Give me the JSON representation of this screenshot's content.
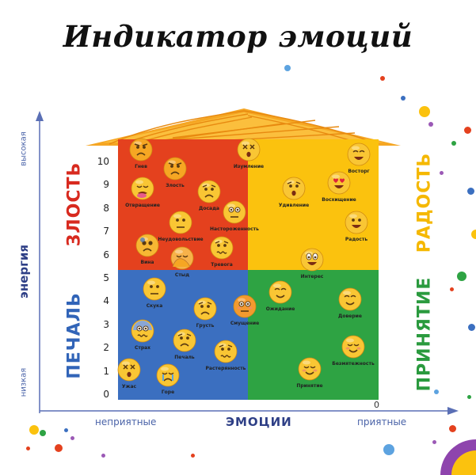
{
  "title": "Индикатор эмоций",
  "y_axis": {
    "title": "энергия",
    "high": "высокая",
    "low": "низкая",
    "ticks": [
      "0",
      "1",
      "2",
      "3",
      "4",
      "5",
      "6",
      "7",
      "8",
      "9",
      "10"
    ]
  },
  "x_axis": {
    "title": "ЭМОЦИИ",
    "left": "неприятные",
    "right": "приятные",
    "zero": "0"
  },
  "quadrants": {
    "anger": {
      "label": "ЗЛОСТЬ",
      "color": "#e4411e"
    },
    "joy": {
      "label": "РАДОСТЬ",
      "color": "#fbc20e"
    },
    "sadness": {
      "label": "ПЕЧАЛЬ",
      "color": "#3b6fc0"
    },
    "acceptance": {
      "label": "ПРИНЯТИЕ",
      "color": "#2ea343"
    }
  },
  "label_colors": {
    "anger": "#d82a1f",
    "joy": "#f5b800",
    "sadness": "#3164b8",
    "acceptance": "#2a9a3e"
  },
  "emotions": [
    {
      "label": "Гнев",
      "face": "angry"
    },
    {
      "label": "Злость",
      "face": "angry"
    },
    {
      "label": "Отвращение",
      "face": "disgust"
    },
    {
      "label": "Досада",
      "face": "sad"
    },
    {
      "label": "Изумление",
      "face": "dizzy"
    },
    {
      "label": "Неудовольствие",
      "face": "neutral"
    },
    {
      "label": "Настороженность",
      "face": "alert"
    },
    {
      "label": "Вина",
      "face": "guilt"
    },
    {
      "label": "Тревога",
      "face": "worry"
    },
    {
      "label": "Стыд",
      "face": "shame"
    },
    {
      "label": "Восторг",
      "face": "laugh"
    },
    {
      "label": "Восхищение",
      "face": "love"
    },
    {
      "label": "Удивление",
      "face": "surprise"
    },
    {
      "label": "Радость",
      "face": "happy"
    },
    {
      "label": "Интерес",
      "face": "grin"
    },
    {
      "label": "Скука",
      "face": "neutral"
    },
    {
      "label": "Грусть",
      "face": "sad"
    },
    {
      "label": "Смущение",
      "face": "blush"
    },
    {
      "label": "Ожидание",
      "face": "smile"
    },
    {
      "label": "Доверие",
      "face": "smile"
    },
    {
      "label": "Страх",
      "face": "fear"
    },
    {
      "label": "Печаль",
      "face": "sad"
    },
    {
      "label": "Растерянность",
      "face": "worry"
    },
    {
      "label": "Безмятежность",
      "face": "content"
    },
    {
      "label": "Ужас",
      "face": "dizzy"
    },
    {
      "label": "Горе",
      "face": "cry"
    },
    {
      "label": "Принятие",
      "face": "content"
    }
  ]
}
